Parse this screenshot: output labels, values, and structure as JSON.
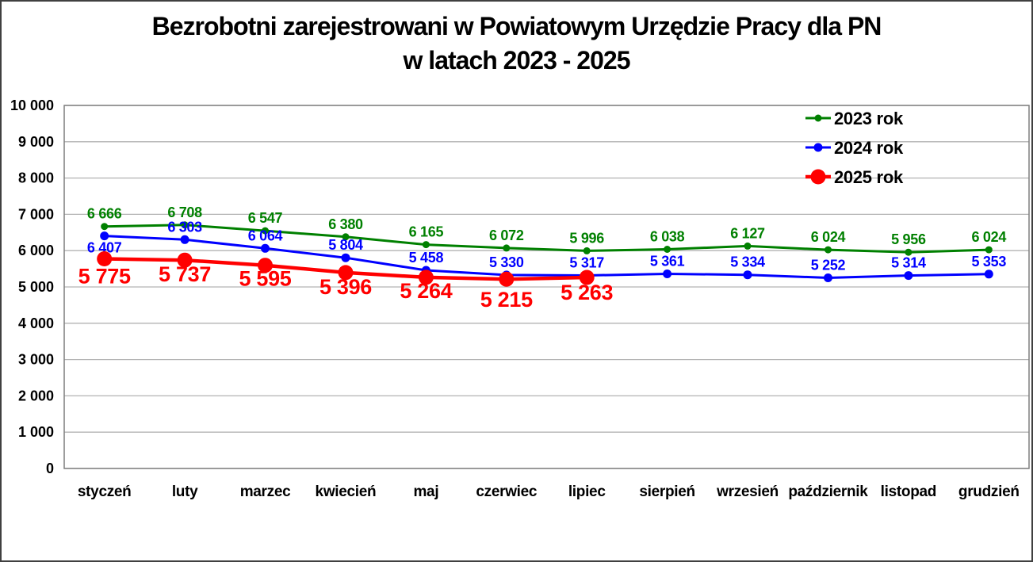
{
  "title": {
    "line1": "Bezrobotni zarejestrowani w Powiatowym Urzędzie Pracy dla PN",
    "line2": "w latach 2023 - 2025"
  },
  "chart_data": {
    "type": "line",
    "categories": [
      "styczeń",
      "luty",
      "marzec",
      "kwiecień",
      "maj",
      "czerwiec",
      "lipiec",
      "sierpień",
      "wrzesień",
      "październik",
      "listopad",
      "grudzień"
    ],
    "series": [
      {
        "name": "2023 rok",
        "color": "#008000",
        "values": [
          6666,
          6708,
          6547,
          6380,
          6165,
          6072,
          5996,
          6038,
          6127,
          6024,
          5956,
          6024
        ],
        "labels": [
          "6 666",
          "6 708",
          "6 547",
          "6 380",
          "6 165",
          "6 072",
          "5 996",
          "6 038",
          "6 127",
          "6 024",
          "5 956",
          "6 024"
        ]
      },
      {
        "name": "2024 rok",
        "color": "#0000ff",
        "values": [
          6407,
          6303,
          6064,
          5804,
          5458,
          5330,
          5317,
          5361,
          5334,
          5252,
          5314,
          5353
        ],
        "labels": [
          "6 407",
          "6 303",
          "6 064",
          "5 804",
          "5 458",
          "5 330",
          "5 317",
          "5 361",
          "5 334",
          "5 252",
          "5 314",
          "5 353"
        ]
      },
      {
        "name": "2025 rok",
        "color": "#ff0000",
        "values": [
          5775,
          5737,
          5595,
          5396,
          5264,
          5215,
          5263,
          null,
          null,
          null,
          null,
          null
        ],
        "labels": [
          "5 775",
          "5 737",
          "5 595",
          "5 396",
          "5 264",
          "5 215",
          "5 263"
        ]
      }
    ],
    "y_axis": {
      "min": 0,
      "max": 10000,
      "step": 1000,
      "tick_labels": [
        "0",
        "1 000",
        "2 000",
        "3 000",
        "4 000",
        "5 000",
        "6 000",
        "7 000",
        "8 000",
        "9 000",
        "10 000"
      ]
    },
    "grid": true,
    "legend_position": "top-right",
    "legend": [
      "2023 rok",
      "2024 rok",
      "2025 rok"
    ]
  },
  "colors": {
    "grid": "#b3b3b3",
    "frame": "#7f7f7f",
    "text": "#000000",
    "background": "#ffffff"
  }
}
